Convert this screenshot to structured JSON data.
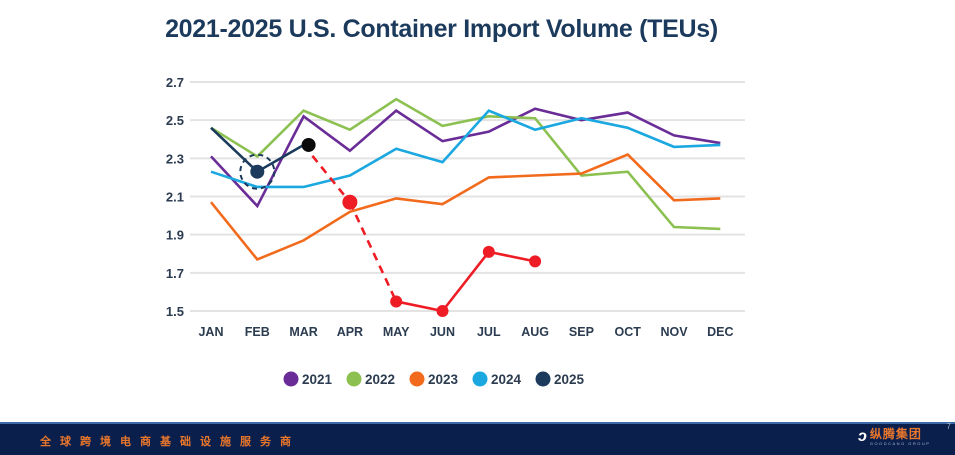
{
  "chart_data": {
    "type": "line",
    "title": "2021-2025 U.S. Container Import Volume (TEUs)",
    "xlabel": "",
    "ylabel": "",
    "categories": [
      "JAN",
      "FEB",
      "MAR",
      "APR",
      "MAY",
      "JUN",
      "JUL",
      "AUG",
      "SEP",
      "OCT",
      "NOV",
      "DEC"
    ],
    "yticks": [
      "2.7",
      "2.5",
      "2.3",
      "2.1",
      "1.9",
      "1.7",
      "1.5"
    ],
    "ylim": [
      1.5,
      2.7
    ],
    "grid": true,
    "legend_position": "bottom",
    "series": [
      {
        "name": "2021",
        "color": "#6a2c96",
        "values": [
          2.31,
          2.05,
          2.52,
          2.34,
          2.55,
          2.39,
          2.44,
          2.56,
          2.5,
          2.54,
          2.42,
          2.38
        ]
      },
      {
        "name": "2022",
        "color": "#8cc152",
        "values": [
          2.46,
          2.31,
          2.55,
          2.45,
          2.61,
          2.47,
          2.52,
          2.51,
          2.21,
          2.23,
          1.94,
          1.93
        ]
      },
      {
        "name": "2023",
        "color": "#f26b1d",
        "values": [
          2.07,
          1.77,
          1.87,
          2.02,
          2.09,
          2.06,
          2.2,
          2.21,
          2.22,
          2.32,
          2.08,
          2.09
        ]
      },
      {
        "name": "2024",
        "color": "#1ba8e0",
        "values": [
          2.23,
          2.15,
          2.15,
          2.21,
          2.35,
          2.28,
          2.55,
          2.45,
          2.51,
          2.46,
          2.36,
          2.37
        ]
      },
      {
        "name": "2025",
        "color": "#1b3a5c",
        "values": [
          2.46,
          2.23,
          2.37,
          null,
          null,
          null,
          null,
          null,
          null,
          null,
          null,
          null
        ]
      }
    ],
    "annotations": {
      "highlight_circle": {
        "series": "2025",
        "category": "FEB",
        "style": "dashed-circle"
      },
      "projection": {
        "color": "#ee1c25",
        "start": {
          "category": "MAR",
          "value": 2.37
        },
        "points": [
          {
            "category": "APR",
            "value": 2.07
          },
          {
            "category": "MAY",
            "value": 1.55
          },
          {
            "category": "JUN",
            "value": 1.5
          },
          {
            "category": "JUL",
            "value": 1.81
          },
          {
            "category": "AUG",
            "value": 1.76
          }
        ],
        "dashed_until": "MAY"
      }
    }
  },
  "footer": {
    "slogan": "全球跨境电商基础设施服务商",
    "logo_cn": "纵腾集团",
    "logo_en": "GOODCANG GROUP",
    "page_number": "7"
  }
}
